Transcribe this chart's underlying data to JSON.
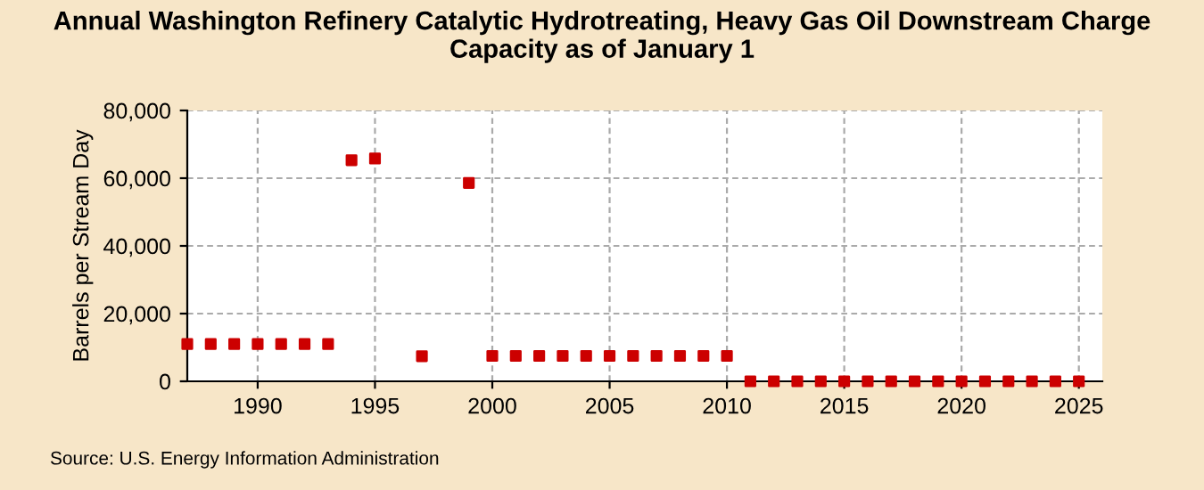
{
  "chart_data": {
    "type": "scatter",
    "title": "Annual Washington Refinery Catalytic Hydrotreating, Heavy Gas Oil Downstream Charge Capacity as of January 1",
    "ylabel": "Barrels per Stream Day",
    "annotations": [
      "Source: U.S. Energy Information Administration"
    ],
    "x": [
      1987,
      1988,
      1989,
      1990,
      1991,
      1992,
      1993,
      1994,
      1995,
      1997,
      1999,
      2000,
      2001,
      2002,
      2003,
      2004,
      2005,
      2006,
      2007,
      2008,
      2009,
      2010,
      2011,
      2012,
      2013,
      2014,
      2015,
      2016,
      2017,
      2018,
      2019,
      2020,
      2021,
      2022,
      2023,
      2024,
      2025
    ],
    "series": [
      {
        "color": "#cc0000",
        "values": [
          11000,
          11000,
          11000,
          11000,
          11000,
          11000,
          11000,
          65300,
          65800,
          7400,
          58600,
          7500,
          7500,
          7500,
          7500,
          7500,
          7500,
          7500,
          7500,
          7500,
          7500,
          7500,
          0,
          0,
          0,
          0,
          0,
          0,
          0,
          0,
          0,
          0,
          0,
          0,
          0,
          0,
          0
        ]
      }
    ],
    "xlim": [
      1987,
      2026
    ],
    "xticks": [
      1990,
      1995,
      2000,
      2005,
      2010,
      2015,
      2020,
      2025
    ],
    "ylim": [
      0,
      80000
    ],
    "yticks": [
      {
        "value": 0,
        "label": "0"
      },
      {
        "value": 20000,
        "label": "20,000"
      },
      {
        "value": 40000,
        "label": "40,000"
      },
      {
        "value": 60000,
        "label": "60,000"
      },
      {
        "value": 80000,
        "label": "80,000"
      }
    ],
    "grid": true,
    "marker": "square",
    "legend": false
  }
}
